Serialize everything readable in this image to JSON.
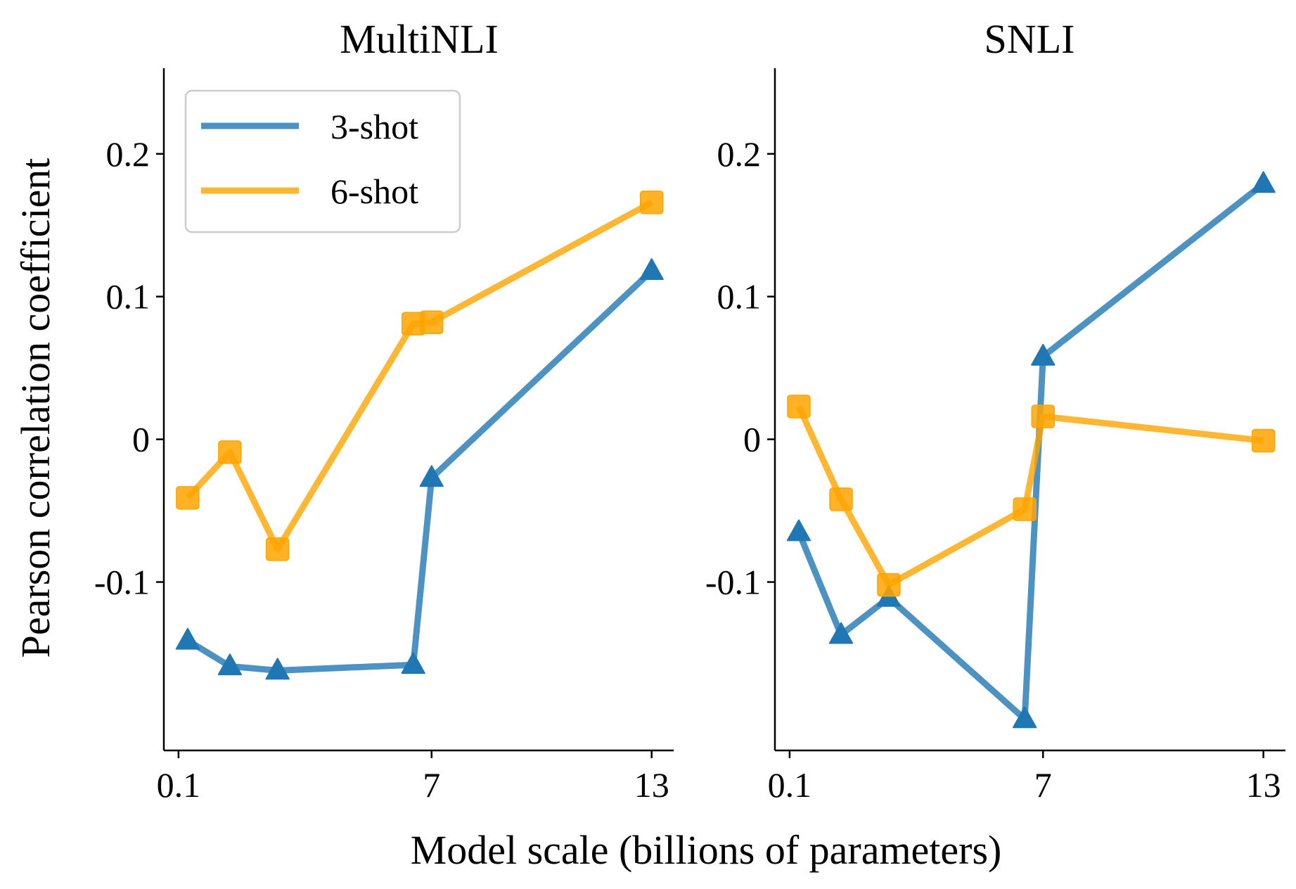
{
  "figure": {
    "xlabel": "Model scale (billions of parameters)",
    "ylabel": "Pearson correlation coefficient"
  },
  "legend": {
    "placement": "upper-left of first panel",
    "entries": [
      {
        "label": "3-shot",
        "color": "#1f77b4"
      },
      {
        "label": "6-shot",
        "color": "#ffa500"
      }
    ]
  },
  "chart_data": [
    {
      "type": "line",
      "title": "MultiNLI",
      "xlabel": "Model scale (billions of parameters)",
      "ylabel": "Pearson correlation coefficient",
      "xlim": [
        -0.3,
        13.6
      ],
      "ylim": [
        -0.218,
        0.26
      ],
      "xticks": [
        0.1,
        7,
        13
      ],
      "xtick_labels": [
        "0.1",
        "7",
        "13"
      ],
      "yticks": [
        -0.1,
        0,
        0.1,
        0.2
      ],
      "ytick_labels": [
        "-0.1",
        "0",
        "0.1",
        "0.2"
      ],
      "series": [
        {
          "name": "3-shot",
          "color": "#1f77b4",
          "marker": "triangle",
          "x": [
            0.35,
            1.5,
            2.8,
            6.5,
            7.0,
            13.0
          ],
          "y": [
            -0.141,
            -0.159,
            -0.162,
            -0.158,
            -0.027,
            0.118
          ]
        },
        {
          "name": "6-shot",
          "color": "#ffa500",
          "marker": "square",
          "x": [
            0.35,
            1.5,
            2.8,
            6.5,
            7.0,
            13.0
          ],
          "y": [
            -0.041,
            -0.009,
            -0.077,
            0.081,
            0.082,
            0.166
          ]
        }
      ]
    },
    {
      "type": "line",
      "title": "SNLI",
      "xlabel": "Model scale (billions of parameters)",
      "ylabel": "",
      "xlim": [
        -0.3,
        13.6
      ],
      "ylim": [
        -0.218,
        0.26
      ],
      "xticks": [
        0.1,
        7,
        13
      ],
      "xtick_labels": [
        "0.1",
        "7",
        "13"
      ],
      "yticks": [
        -0.1,
        0,
        0.1,
        0.2
      ],
      "ytick_labels": [
        "-0.1",
        "0",
        "0.1",
        "0.2"
      ],
      "series": [
        {
          "name": "3-shot",
          "color": "#1f77b4",
          "marker": "triangle",
          "x": [
            0.35,
            1.5,
            2.8,
            6.5,
            7.0,
            13.0
          ],
          "y": [
            -0.065,
            -0.137,
            -0.111,
            -0.196,
            0.058,
            0.179
          ]
        },
        {
          "name": "6-shot",
          "color": "#ffa500",
          "marker": "square",
          "x": [
            0.35,
            1.5,
            2.8,
            6.5,
            7.0,
            13.0
          ],
          "y": [
            0.023,
            -0.042,
            -0.102,
            -0.049,
            0.016,
            -0.001
          ]
        }
      ]
    }
  ]
}
